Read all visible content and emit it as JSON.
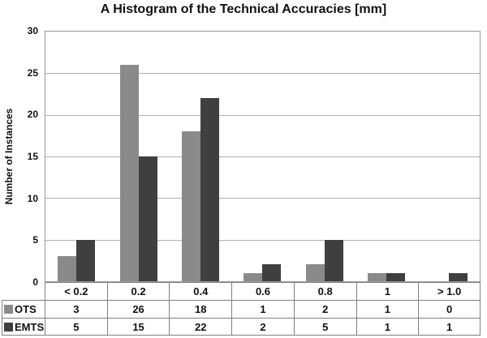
{
  "chart_data": {
    "type": "bar",
    "title": "A Histogram of the Technical Accuracies [mm]",
    "xlabel": "",
    "ylabel": "Number of Instances",
    "categories": [
      "< 0.2",
      "0.2",
      "0.4",
      "0.6",
      "0.8",
      "1",
      "> 1.0"
    ],
    "series": [
      {
        "name": "OTS",
        "color": "#8a8a8a",
        "values": [
          3,
          26,
          18,
          1,
          2,
          1,
          0
        ]
      },
      {
        "name": "EMTS",
        "color": "#3f3f3f",
        "values": [
          5,
          15,
          22,
          2,
          5,
          1,
          1
        ]
      }
    ],
    "ylim": [
      0,
      30
    ],
    "yticks": [
      0,
      5,
      10,
      15,
      20,
      25,
      30
    ],
    "grid": "horizontal",
    "legend_position": "data-table-left-column",
    "colors": {
      "ots_bar": "#8a8a8a",
      "emts_bar": "#3f3f3f",
      "gridline": "#b2b2b2",
      "plot_border": "#9b9b9b",
      "table_border": "#808080",
      "background": "#ffffff",
      "text": "#111111"
    }
  }
}
